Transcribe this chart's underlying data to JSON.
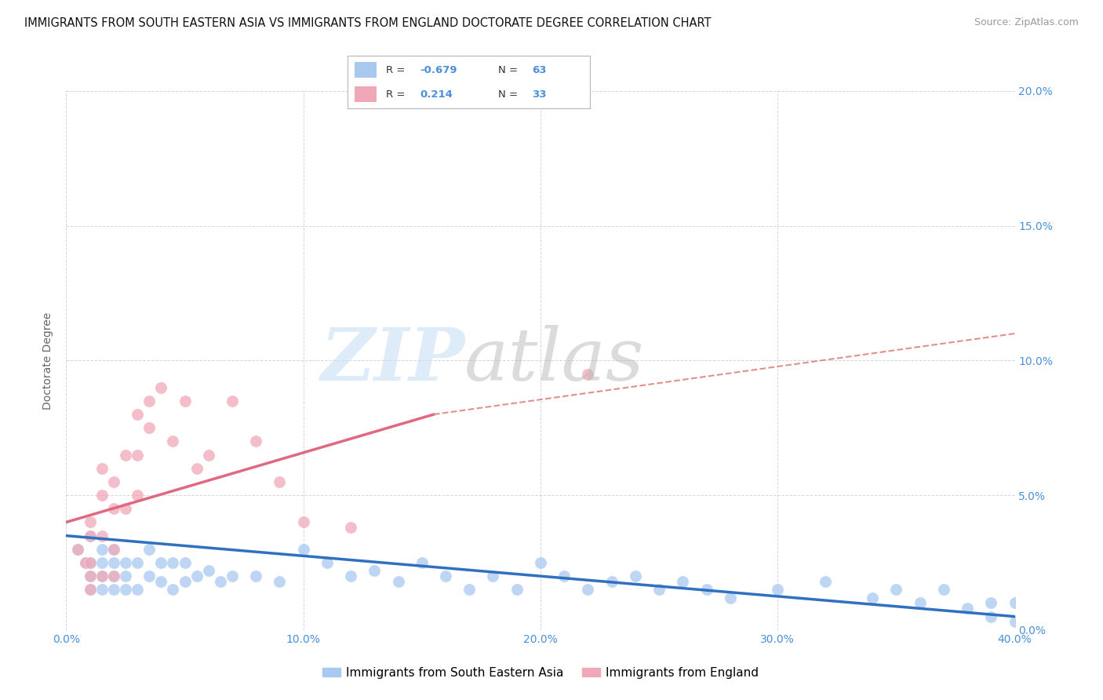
{
  "title": "IMMIGRANTS FROM SOUTH EASTERN ASIA VS IMMIGRANTS FROM ENGLAND DOCTORATE DEGREE CORRELATION CHART",
  "source": "Source: ZipAtlas.com",
  "ylabel": "Doctorate Degree",
  "legend_labels": [
    "Immigrants from South Eastern Asia",
    "Immigrants from England"
  ],
  "r_blue": -0.679,
  "n_blue": 63,
  "r_pink": 0.214,
  "n_pink": 33,
  "blue_color": "#a8c8f0",
  "pink_color": "#f0a8b8",
  "blue_line_color": "#3070c0",
  "pink_line_color": "#e06880",
  "pink_dash_color": "#e09090",
  "axis_color": "#4a90d9",
  "xmin": 0.0,
  "xmax": 0.4,
  "ymin": 0.0,
  "ymax": 0.2,
  "yticks": [
    0.0,
    0.05,
    0.1,
    0.15,
    0.2
  ],
  "xticks": [
    0.0,
    0.1,
    0.2,
    0.3,
    0.4
  ],
  "blue_x": [
    0.005,
    0.008,
    0.01,
    0.01,
    0.01,
    0.01,
    0.015,
    0.015,
    0.015,
    0.015,
    0.02,
    0.02,
    0.02,
    0.02,
    0.025,
    0.025,
    0.025,
    0.03,
    0.03,
    0.035,
    0.035,
    0.04,
    0.04,
    0.045,
    0.045,
    0.05,
    0.05,
    0.055,
    0.06,
    0.065,
    0.07,
    0.08,
    0.09,
    0.1,
    0.11,
    0.12,
    0.13,
    0.14,
    0.15,
    0.16,
    0.17,
    0.18,
    0.19,
    0.2,
    0.21,
    0.22,
    0.23,
    0.24,
    0.25,
    0.26,
    0.27,
    0.28,
    0.3,
    0.32,
    0.34,
    0.35,
    0.36,
    0.37,
    0.38,
    0.39,
    0.39,
    0.4,
    0.4
  ],
  "blue_y": [
    0.03,
    0.025,
    0.035,
    0.025,
    0.02,
    0.015,
    0.03,
    0.025,
    0.02,
    0.015,
    0.03,
    0.025,
    0.02,
    0.015,
    0.025,
    0.02,
    0.015,
    0.025,
    0.015,
    0.03,
    0.02,
    0.025,
    0.018,
    0.025,
    0.015,
    0.025,
    0.018,
    0.02,
    0.022,
    0.018,
    0.02,
    0.02,
    0.018,
    0.03,
    0.025,
    0.02,
    0.022,
    0.018,
    0.025,
    0.02,
    0.015,
    0.02,
    0.015,
    0.025,
    0.02,
    0.015,
    0.018,
    0.02,
    0.015,
    0.018,
    0.015,
    0.012,
    0.015,
    0.018,
    0.012,
    0.015,
    0.01,
    0.015,
    0.008,
    0.01,
    0.005,
    0.01,
    0.003
  ],
  "pink_x": [
    0.005,
    0.008,
    0.01,
    0.01,
    0.01,
    0.01,
    0.01,
    0.015,
    0.015,
    0.015,
    0.015,
    0.02,
    0.02,
    0.02,
    0.02,
    0.025,
    0.025,
    0.03,
    0.03,
    0.03,
    0.035,
    0.035,
    0.04,
    0.045,
    0.05,
    0.055,
    0.06,
    0.07,
    0.08,
    0.09,
    0.1,
    0.12,
    0.22
  ],
  "pink_y": [
    0.03,
    0.025,
    0.04,
    0.035,
    0.025,
    0.02,
    0.015,
    0.06,
    0.05,
    0.035,
    0.02,
    0.055,
    0.045,
    0.03,
    0.02,
    0.065,
    0.045,
    0.08,
    0.065,
    0.05,
    0.085,
    0.075,
    0.09,
    0.07,
    0.085,
    0.06,
    0.065,
    0.085,
    0.07,
    0.055,
    0.04,
    0.038,
    0.095
  ],
  "title_fontsize": 10.5,
  "axis_label_fontsize": 10,
  "tick_fontsize": 10
}
